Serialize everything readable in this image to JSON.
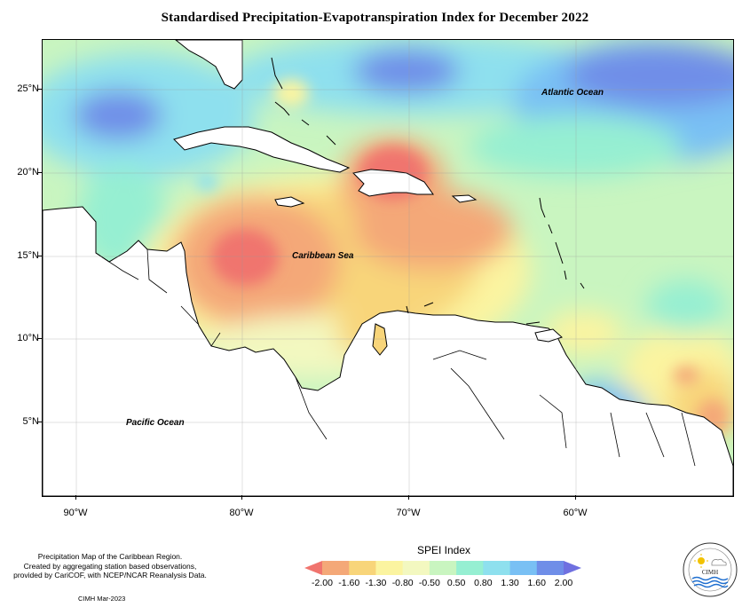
{
  "title": "Standardised Precipitation-Evapotranspiration Index for December 2022",
  "axes": {
    "lat_labels": [
      "25°N",
      "20°N",
      "15°N",
      "10°N",
      "5°N"
    ],
    "lon_labels": [
      "90°W",
      "80°W",
      "70°W",
      "60°W"
    ]
  },
  "map_labels": {
    "atlantic": "Atlantic Ocean",
    "caribbean": "Caribbean Sea",
    "pacific": "Pacific Ocean"
  },
  "credit": {
    "line1": "Precipitation Map of the Caribbean Region.",
    "line2": "Created by aggregating station based observations,",
    "line3": "provided by CariCOF, with NCEP/NCAR Reanalysis Data.",
    "date": "CIMH Mar-2023"
  },
  "legend": {
    "title": "SPEI Index",
    "ticks": [
      "-2.00",
      "-1.60",
      "-1.30",
      "-0.80",
      "-0.50",
      "0.50",
      "0.80",
      "1.30",
      "1.60",
      "2.00"
    ],
    "colors": [
      "#f0746e",
      "#f4a878",
      "#f8d57a",
      "#fbf4a0",
      "#f3f8c0",
      "#c9f5c0",
      "#96efd2",
      "#8ee0ee",
      "#79c0f4",
      "#6f8ee8",
      "#6f70e0"
    ]
  },
  "logo": {
    "text": "CIMH",
    "icon": "cimh-logo-icon"
  }
}
